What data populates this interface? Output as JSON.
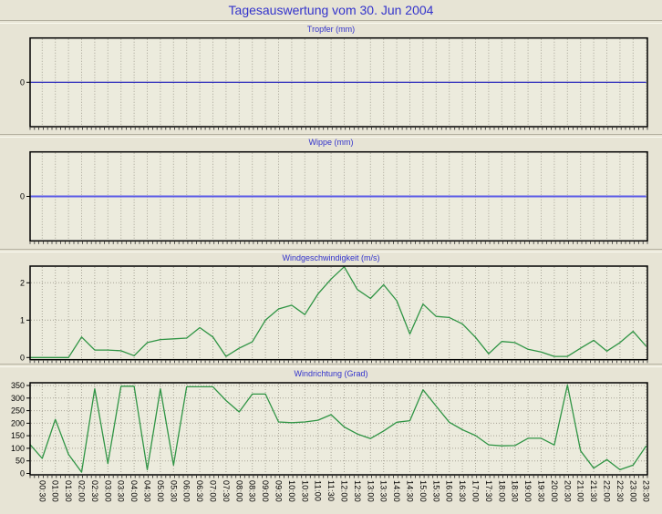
{
  "page_title": "Tagesauswertung vom 30. Jun 2004",
  "colors": {
    "title": "#3333cc",
    "page_bg": "#e7e4d5",
    "plot_bg": "#ecebdd",
    "grid": "#a7a396",
    "axis": "#000000",
    "tropfer_line": "#0000b4",
    "wippe_line": "#5a5ae6",
    "wind_line": "#2f9444"
  },
  "x_axis": {
    "labels": [
      "00:30",
      "01:00",
      "01:30",
      "02:00",
      "02:30",
      "03:00",
      "03:30",
      "04:00",
      "04:30",
      "05:00",
      "05:30",
      "06:00",
      "06:30",
      "07:00",
      "07:30",
      "08:00",
      "08:30",
      "09:00",
      "09:30",
      "10:00",
      "10:30",
      "11:00",
      "11:30",
      "12:00",
      "12:30",
      "13:00",
      "13:30",
      "14:00",
      "14:30",
      "15:00",
      "15:30",
      "16:00",
      "16:30",
      "17:00",
      "17:30",
      "18:00",
      "18:30",
      "19:00",
      "19:30",
      "20:00",
      "20:30",
      "21:00",
      "21:30",
      "22:00",
      "22:30",
      "23:00",
      "23:30"
    ],
    "interval_minutes": 30,
    "minor_ticks_per_interval": 3
  },
  "chart_data": [
    {
      "type": "line",
      "name": "tropfer",
      "title": "Tropfer (mm)",
      "yticks": [
        0
      ],
      "ylim": [
        -2.4,
        2.4
      ],
      "line_color": "#0000b4",
      "line_width": 1,
      "edge_start": 0,
      "values": [
        0,
        0,
        0,
        0,
        0,
        0,
        0,
        0,
        0,
        0,
        0,
        0,
        0,
        0,
        0,
        0,
        0,
        0,
        0,
        0,
        0,
        0,
        0,
        0,
        0,
        0,
        0,
        0,
        0,
        0,
        0,
        0,
        0,
        0,
        0,
        0,
        0,
        0,
        0,
        0,
        0,
        0,
        0,
        0,
        0,
        0,
        0
      ]
    },
    {
      "type": "line",
      "name": "wippe",
      "title": "Wippe (mm)",
      "yticks": [
        0
      ],
      "ylim": [
        -2.4,
        2.4
      ],
      "line_color": "#5a5ae6",
      "line_width": 2,
      "edge_start": 0,
      "values": [
        0,
        0,
        0,
        0,
        0,
        0,
        0,
        0,
        0,
        0,
        0,
        0,
        0,
        0,
        0,
        0,
        0,
        0,
        0,
        0,
        0,
        0,
        0,
        0,
        0,
        0,
        0,
        0,
        0,
        0,
        0,
        0,
        0,
        0,
        0,
        0,
        0,
        0,
        0,
        0,
        0,
        0,
        0,
        0,
        0,
        0,
        0
      ]
    },
    {
      "type": "line",
      "name": "wind-speed",
      "title": "Windgeschwindigkeit (m/s)",
      "yticks": [
        0,
        1,
        2
      ],
      "ylim": [
        0,
        2.45
      ],
      "line_color": "#2f9444",
      "line_width": 1.3,
      "edge_start": 0,
      "values": [
        0,
        0,
        0,
        0.55,
        0.2,
        0.2,
        0.18,
        0.05,
        0.4,
        0.48,
        0.5,
        0.52,
        0.8,
        0.55,
        0.03,
        0.25,
        0.42,
        1.0,
        1.3,
        1.4,
        1.15,
        1.7,
        2.1,
        2.43,
        1.82,
        1.58,
        1.95,
        1.52,
        0.63,
        1.43,
        1.1,
        1.07,
        0.9,
        0.54,
        0.1,
        0.43,
        0.4,
        0.22,
        0.15,
        0.03,
        0.03,
        0.25,
        0.46,
        0.17,
        0.4,
        0.7,
        0.3
      ]
    },
    {
      "type": "line",
      "name": "wind-direction",
      "title": "Windrichtung (Grad)",
      "yticks": [
        0,
        50,
        100,
        150,
        200,
        250,
        300,
        350
      ],
      "ylim": [
        0,
        361
      ],
      "line_color": "#2f9444",
      "line_width": 1.3,
      "edge_start": 115,
      "values": [
        60,
        215,
        76,
        5,
        337,
        39,
        347,
        347,
        15,
        337,
        33,
        345,
        345,
        345,
        290,
        245,
        316,
        316,
        205,
        202,
        205,
        212,
        234,
        185,
        157,
        139,
        169,
        204,
        210,
        333,
        268,
        204,
        174,
        151,
        114,
        110,
        111,
        140,
        140,
        113,
        352,
        90,
        21,
        55,
        15,
        33,
        110
      ]
    }
  ]
}
